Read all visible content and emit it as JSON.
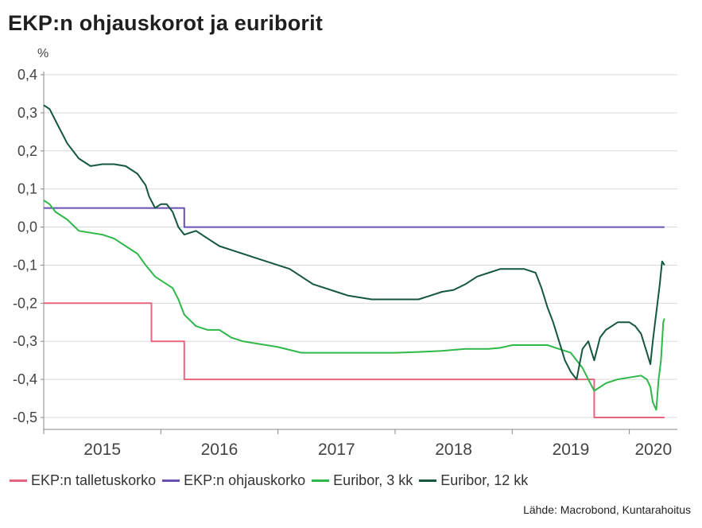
{
  "title": "EKP:n ohjauskorot ja euriborit",
  "source": "Lähde: Macrobond, Kuntarahoitus",
  "chart_data": {
    "type": "line",
    "ylabel": "%",
    "xlabel": "",
    "ylim": [
      -0.5,
      0.4
    ],
    "xlim": [
      2015.0,
      2020.41
    ],
    "yticks": [
      "0,4",
      "0,3",
      "0,2",
      "0,1",
      "0,0",
      "-0,1",
      "-0,2",
      "-0,3",
      "-0,4",
      "-0,5"
    ],
    "ytick_values": [
      0.4,
      0.3,
      0.2,
      0.1,
      0.0,
      -0.1,
      -0.2,
      -0.3,
      -0.4,
      -0.5
    ],
    "xticks": [
      "2015",
      "2016",
      "2017",
      "2018",
      "2019",
      "2020"
    ],
    "grid": "horizontal",
    "legend_position": "bottom",
    "series": [
      {
        "name": "EKP:n talletuskorko",
        "color": "#e8647e",
        "x": [
          2015.0,
          2015.92,
          2015.92,
          2016.2,
          2016.2,
          2019.7,
          2019.7,
          2020.3
        ],
        "y": [
          -0.2,
          -0.2,
          -0.3,
          -0.3,
          -0.4,
          -0.4,
          -0.5,
          -0.5
        ]
      },
      {
        "name": "EKP:n ohjauskorko",
        "color": "#6a4fb0",
        "x": [
          2015.0,
          2016.2,
          2016.2,
          2020.3
        ],
        "y": [
          0.05,
          0.05,
          0.0,
          0.0
        ]
      },
      {
        "name": "Euribor, 3 kk",
        "color": "#2eb84a",
        "x": [
          2015.0,
          2015.05,
          2015.1,
          2015.2,
          2015.3,
          2015.4,
          2015.5,
          2015.6,
          2015.7,
          2015.8,
          2015.87,
          2015.95,
          2016.0,
          2016.1,
          2016.15,
          2016.2,
          2016.3,
          2016.4,
          2016.5,
          2016.6,
          2016.7,
          2016.8,
          2016.9,
          2017.0,
          2017.2,
          2017.4,
          2017.6,
          2017.8,
          2018.0,
          2018.2,
          2018.4,
          2018.6,
          2018.8,
          2018.9,
          2019.0,
          2019.1,
          2019.2,
          2019.3,
          2019.4,
          2019.5,
          2019.6,
          2019.65,
          2019.7,
          2019.8,
          2019.9,
          2020.0,
          2020.1,
          2020.15,
          2020.18,
          2020.2,
          2020.23,
          2020.25,
          2020.27,
          2020.29,
          2020.3
        ],
        "y": [
          0.07,
          0.06,
          0.04,
          0.02,
          -0.01,
          -0.015,
          -0.02,
          -0.03,
          -0.05,
          -0.07,
          -0.1,
          -0.13,
          -0.14,
          -0.16,
          -0.19,
          -0.23,
          -0.26,
          -0.27,
          -0.27,
          -0.29,
          -0.3,
          -0.305,
          -0.31,
          -0.315,
          -0.33,
          -0.33,
          -0.33,
          -0.33,
          -0.33,
          -0.328,
          -0.325,
          -0.32,
          -0.32,
          -0.317,
          -0.31,
          -0.31,
          -0.31,
          -0.31,
          -0.32,
          -0.33,
          -0.37,
          -0.4,
          -0.43,
          -0.41,
          -0.4,
          -0.395,
          -0.39,
          -0.4,
          -0.42,
          -0.46,
          -0.48,
          -0.4,
          -0.35,
          -0.25,
          -0.24
        ]
      },
      {
        "name": "Euribor, 12 kk",
        "color": "#14573c",
        "x": [
          2015.0,
          2015.05,
          2015.1,
          2015.15,
          2015.2,
          2015.3,
          2015.4,
          2015.5,
          2015.6,
          2015.7,
          2015.8,
          2015.87,
          2015.9,
          2015.95,
          2016.0,
          2016.05,
          2016.1,
          2016.15,
          2016.2,
          2016.3,
          2016.4,
          2016.5,
          2016.6,
          2016.7,
          2016.8,
          2016.9,
          2017.0,
          2017.1,
          2017.2,
          2017.3,
          2017.4,
          2017.5,
          2017.6,
          2017.7,
          2017.8,
          2017.9,
          2018.0,
          2018.1,
          2018.2,
          2018.3,
          2018.4,
          2018.5,
          2018.6,
          2018.7,
          2018.8,
          2018.9,
          2018.95,
          2019.0,
          2019.05,
          2019.1,
          2019.15,
          2019.2,
          2019.25,
          2019.3,
          2019.35,
          2019.4,
          2019.45,
          2019.5,
          2019.55,
          2019.6,
          2019.65,
          2019.7,
          2019.75,
          2019.8,
          2019.9,
          2020.0,
          2020.05,
          2020.1,
          2020.15,
          2020.18,
          2020.2,
          2020.22,
          2020.24,
          2020.26,
          2020.28,
          2020.3
        ],
        "y": [
          0.32,
          0.31,
          0.28,
          0.25,
          0.22,
          0.18,
          0.16,
          0.165,
          0.165,
          0.16,
          0.14,
          0.11,
          0.08,
          0.05,
          0.06,
          0.06,
          0.04,
          0.0,
          -0.02,
          -0.01,
          -0.03,
          -0.05,
          -0.06,
          -0.07,
          -0.08,
          -0.09,
          -0.1,
          -0.11,
          -0.13,
          -0.15,
          -0.16,
          -0.17,
          -0.18,
          -0.185,
          -0.19,
          -0.19,
          -0.19,
          -0.19,
          -0.19,
          -0.18,
          -0.17,
          -0.165,
          -0.15,
          -0.13,
          -0.12,
          -0.11,
          -0.11,
          -0.11,
          -0.11,
          -0.11,
          -0.115,
          -0.12,
          -0.16,
          -0.21,
          -0.25,
          -0.3,
          -0.35,
          -0.38,
          -0.4,
          -0.32,
          -0.3,
          -0.35,
          -0.29,
          -0.27,
          -0.25,
          -0.25,
          -0.26,
          -0.28,
          -0.33,
          -0.36,
          -0.3,
          -0.25,
          -0.2,
          -0.15,
          -0.09,
          -0.1
        ]
      }
    ]
  }
}
